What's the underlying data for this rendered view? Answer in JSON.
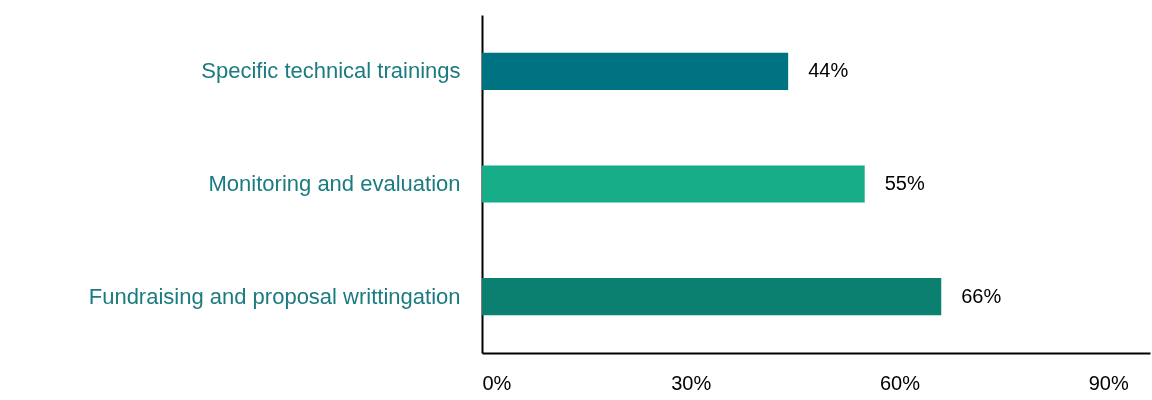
{
  "chart_data": {
    "type": "bar",
    "orientation": "horizontal",
    "categories": [
      "Specific technical trainings",
      "Monitoring and evaluation",
      "Fundraising and proposal writtingation"
    ],
    "values": [
      44,
      55,
      66
    ],
    "colors": [
      "#007382",
      "#17ad88",
      "#0c8070"
    ],
    "value_labels": [
      "44%",
      "55%",
      "66%"
    ],
    "xlim": [
      0,
      96
    ],
    "xticks": [
      {
        "value": 0,
        "label": "0%"
      },
      {
        "value": 30,
        "label": "30%"
      },
      {
        "value": 60,
        "label": "60%"
      },
      {
        "value": 90,
        "label": "90%"
      }
    ]
  }
}
